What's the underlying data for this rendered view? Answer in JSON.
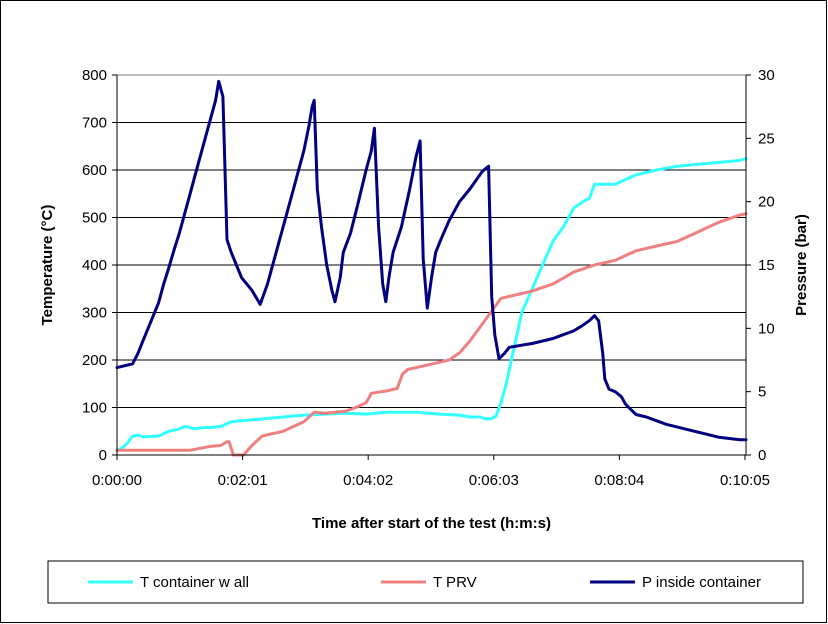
{
  "chart_data": {
    "type": "line",
    "xlabel": "Time after start of the test (h:m:s)",
    "ylabel": "Temperature (°C)",
    "y2label": "Pressure (bar)",
    "xlim": [
      0,
      606
    ],
    "ylim": [
      0,
      800
    ],
    "y2lim": [
      0,
      30
    ],
    "xticks": [
      {
        "v": 0,
        "label": "0:00:00"
      },
      {
        "v": 121,
        "label": "0:02:01"
      },
      {
        "v": 242,
        "label": "0:04:02"
      },
      {
        "v": 363,
        "label": "0:06:03"
      },
      {
        "v": 484,
        "label": "0:08:04"
      },
      {
        "v": 605,
        "label": "0:10:05"
      }
    ],
    "yticks": [
      0,
      100,
      200,
      300,
      400,
      500,
      600,
      700,
      800
    ],
    "y2ticks": [
      0,
      5,
      10,
      15,
      20,
      25,
      30
    ],
    "grid": "horizontal",
    "legend_position": "bottom",
    "series": [
      {
        "name": "T container w all",
        "axis": "left",
        "color": "#33ffff",
        "points": [
          [
            0,
            10
          ],
          [
            5,
            15
          ],
          [
            10,
            25
          ],
          [
            15,
            40
          ],
          [
            20,
            42
          ],
          [
            25,
            38
          ],
          [
            40,
            40
          ],
          [
            50,
            50
          ],
          [
            60,
            55
          ],
          [
            65,
            60
          ],
          [
            70,
            58
          ],
          [
            75,
            55
          ],
          [
            80,
            57
          ],
          [
            90,
            58
          ],
          [
            100,
            60
          ],
          [
            110,
            70
          ],
          [
            120,
            72
          ],
          [
            130,
            74
          ],
          [
            140,
            76
          ],
          [
            160,
            80
          ],
          [
            180,
            84
          ],
          [
            200,
            86
          ],
          [
            220,
            88
          ],
          [
            240,
            86
          ],
          [
            260,
            90
          ],
          [
            290,
            90
          ],
          [
            310,
            86
          ],
          [
            330,
            84
          ],
          [
            340,
            80
          ],
          [
            350,
            80
          ],
          [
            355,
            76
          ],
          [
            360,
            76
          ],
          [
            365,
            82
          ],
          [
            370,
            110
          ],
          [
            375,
            150
          ],
          [
            380,
            200
          ],
          [
            385,
            250
          ],
          [
            390,
            300
          ],
          [
            400,
            350
          ],
          [
            410,
            400
          ],
          [
            420,
            450
          ],
          [
            430,
            480
          ],
          [
            440,
            520
          ],
          [
            450,
            535
          ],
          [
            455,
            540
          ],
          [
            460,
            570
          ],
          [
            480,
            570
          ],
          [
            490,
            580
          ],
          [
            500,
            590
          ],
          [
            520,
            600
          ],
          [
            540,
            608
          ],
          [
            560,
            612
          ],
          [
            580,
            616
          ],
          [
            600,
            620
          ],
          [
            606,
            624
          ]
        ]
      },
      {
        "name": "T PRV",
        "axis": "left",
        "color": "#f08080",
        "points": [
          [
            0,
            10
          ],
          [
            20,
            10
          ],
          [
            60,
            10
          ],
          [
            70,
            10
          ],
          [
            90,
            18
          ],
          [
            100,
            20
          ],
          [
            106,
            28
          ],
          [
            108,
            28
          ],
          [
            112,
            0
          ],
          [
            122,
            0
          ],
          [
            130,
            20
          ],
          [
            140,
            40
          ],
          [
            150,
            45
          ],
          [
            160,
            50
          ],
          [
            170,
            60
          ],
          [
            180,
            70
          ],
          [
            190,
            90
          ],
          [
            200,
            88
          ],
          [
            210,
            90
          ],
          [
            220,
            92
          ],
          [
            230,
            100
          ],
          [
            240,
            110
          ],
          [
            245,
            130
          ],
          [
            260,
            135
          ],
          [
            270,
            140
          ],
          [
            275,
            170
          ],
          [
            280,
            180
          ],
          [
            300,
            190
          ],
          [
            320,
            200
          ],
          [
            330,
            215
          ],
          [
            340,
            240
          ],
          [
            350,
            270
          ],
          [
            360,
            300
          ],
          [
            370,
            330
          ],
          [
            390,
            340
          ],
          [
            400,
            345
          ],
          [
            420,
            360
          ],
          [
            440,
            385
          ],
          [
            460,
            400
          ],
          [
            480,
            410
          ],
          [
            490,
            420
          ],
          [
            500,
            430
          ],
          [
            520,
            440
          ],
          [
            540,
            450
          ],
          [
            560,
            470
          ],
          [
            580,
            490
          ],
          [
            600,
            505
          ],
          [
            606,
            508
          ]
        ]
      },
      {
        "name": "P inside container",
        "axis": "right",
        "color": "#000080",
        "points": [
          [
            0,
            6.9
          ],
          [
            5,
            7
          ],
          [
            15,
            7.2
          ],
          [
            20,
            8
          ],
          [
            25,
            9
          ],
          [
            30,
            10
          ],
          [
            35,
            11
          ],
          [
            40,
            12
          ],
          [
            45,
            13.5
          ],
          [
            50,
            14.8
          ],
          [
            55,
            16.2
          ],
          [
            60,
            17.5
          ],
          [
            65,
            19
          ],
          [
            70,
            20.5
          ],
          [
            75,
            22
          ],
          [
            80,
            23.5
          ],
          [
            85,
            25
          ],
          [
            90,
            26.5
          ],
          [
            95,
            28
          ],
          [
            98,
            29.5
          ],
          [
            102,
            28.3
          ],
          [
            106,
            17
          ],
          [
            110,
            16
          ],
          [
            115,
            15
          ],
          [
            120,
            14
          ],
          [
            130,
            13
          ],
          [
            138,
            11.9
          ],
          [
            145,
            13.5
          ],
          [
            150,
            15
          ],
          [
            160,
            18
          ],
          [
            170,
            21
          ],
          [
            175,
            22.5
          ],
          [
            180,
            24
          ],
          [
            185,
            26
          ],
          [
            188,
            27.5
          ],
          [
            190,
            28
          ],
          [
            193,
            21
          ],
          [
            197,
            18
          ],
          [
            202,
            15
          ],
          [
            207,
            13
          ],
          [
            210,
            12.1
          ],
          [
            215,
            14
          ],
          [
            218,
            16
          ],
          [
            225,
            17.5
          ],
          [
            232,
            19.8
          ],
          [
            240,
            22.5
          ],
          [
            245,
            24
          ],
          [
            248,
            25.8
          ],
          [
            252,
            18
          ],
          [
            256,
            13.5
          ],
          [
            259,
            12.1
          ],
          [
            262,
            14
          ],
          [
            266,
            16
          ],
          [
            274,
            18
          ],
          [
            282,
            21
          ],
          [
            288,
            23.5
          ],
          [
            292,
            24.8
          ],
          [
            295,
            15.5
          ],
          [
            299,
            11.6
          ],
          [
            303,
            14
          ],
          [
            307,
            16
          ],
          [
            312,
            17
          ],
          [
            320,
            18.5
          ],
          [
            330,
            20
          ],
          [
            340,
            21
          ],
          [
            352,
            22.4
          ],
          [
            358,
            22.8
          ],
          [
            361,
            12.5
          ],
          [
            364,
            9.5
          ],
          [
            368,
            7.6
          ],
          [
            373,
            8
          ],
          [
            378,
            8.5
          ],
          [
            385,
            8.6
          ],
          [
            392,
            8.7
          ],
          [
            400,
            8.8
          ],
          [
            410,
            9
          ],
          [
            420,
            9.2
          ],
          [
            430,
            9.5
          ],
          [
            440,
            9.8
          ],
          [
            448,
            10.2
          ],
          [
            455,
            10.6
          ],
          [
            460,
            11
          ],
          [
            464,
            10.6
          ],
          [
            468,
            8
          ],
          [
            470,
            6
          ],
          [
            474,
            5.2
          ],
          [
            480,
            5
          ],
          [
            486,
            4.6
          ],
          [
            490,
            4
          ],
          [
            495,
            3.6
          ],
          [
            500,
            3.2
          ],
          [
            510,
            3
          ],
          [
            520,
            2.7
          ],
          [
            530,
            2.4
          ],
          [
            540,
            2.2
          ],
          [
            550,
            2
          ],
          [
            560,
            1.8
          ],
          [
            570,
            1.6
          ],
          [
            580,
            1.4
          ],
          [
            590,
            1.3
          ],
          [
            600,
            1.2
          ],
          [
            606,
            1.2
          ]
        ]
      }
    ]
  }
}
